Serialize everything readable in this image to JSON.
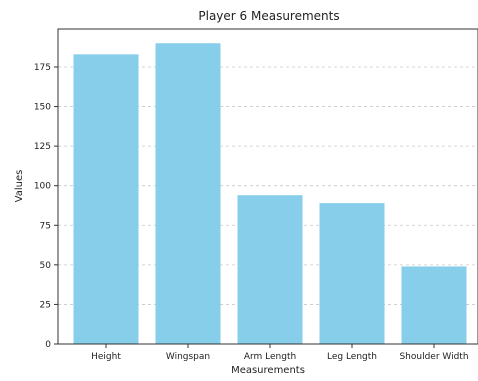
{
  "chart_data": {
    "type": "bar",
    "title": "Player 6 Measurements",
    "xlabel": "Measurements",
    "ylabel": "Values",
    "categories": [
      "Height",
      "Wingspan",
      "Arm Length",
      "Leg Length",
      "Shoulder Width"
    ],
    "values": [
      183,
      190,
      94,
      89,
      49
    ],
    "ylim": [
      0,
      199
    ],
    "yticks": [
      0,
      25,
      50,
      75,
      100,
      125,
      150,
      175
    ],
    "grid": "y-dashed",
    "bar_color": "#87ceeb"
  }
}
